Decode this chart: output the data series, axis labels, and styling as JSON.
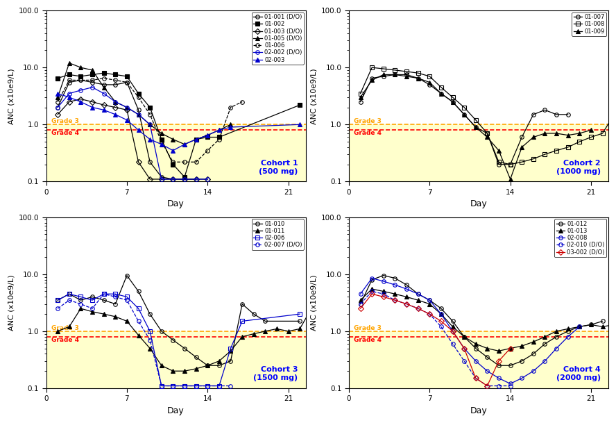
{
  "cohorts": [
    {
      "title": "Cohort 1\n(500 mg)",
      "legend_loc": "upper right",
      "series": [
        {
          "label": "01-001 (D/O)",
          "color": "black",
          "marker": "o",
          "fillstyle": "none",
          "linestyle": "-",
          "days": [
            1,
            2,
            3,
            4,
            5,
            6,
            7,
            8,
            9,
            10,
            11,
            12,
            13
          ],
          "values": [
            2.0,
            5.5,
            6.0,
            5.5,
            5.0,
            5.0,
            5.5,
            1.8,
            0.22,
            0.12,
            0.11,
            0.11,
            0.11
          ]
        },
        {
          "label": "01-002",
          "color": "black",
          "marker": "s",
          "fillstyle": "full",
          "linestyle": "-",
          "days": [
            1,
            2,
            3,
            4,
            5,
            6,
            7,
            8,
            9,
            10,
            11,
            12,
            13,
            14,
            15,
            22
          ],
          "values": [
            6.5,
            7.5,
            7.0,
            7.5,
            8.0,
            7.5,
            7.0,
            3.5,
            2.0,
            0.55,
            0.2,
            0.12,
            0.55,
            0.6,
            0.6,
            2.2
          ]
        },
        {
          "label": "01-003 (D/O)",
          "color": "black",
          "marker": "D",
          "fillstyle": "none",
          "linestyle": "-",
          "days": [
            1,
            2,
            3,
            4,
            5,
            6,
            7,
            8,
            9,
            10,
            11,
            12,
            13,
            14
          ],
          "values": [
            1.5,
            2.5,
            2.8,
            2.5,
            2.2,
            2.0,
            1.8,
            0.22,
            0.11,
            0.11,
            0.11,
            0.11,
            0.11,
            0.11
          ]
        },
        {
          "label": "01-005 (D/O)",
          "color": "black",
          "marker": "^",
          "fillstyle": "full",
          "linestyle": "-",
          "days": [
            1,
            2,
            3,
            4,
            5,
            6,
            7,
            8,
            9,
            10,
            11,
            12,
            13,
            14,
            15,
            16
          ],
          "values": [
            3.0,
            12.0,
            10.0,
            9.0,
            4.5,
            2.5,
            2.0,
            1.5,
            1.0,
            0.7,
            0.55,
            0.45,
            0.55,
            0.65,
            0.8,
            1.0
          ]
        },
        {
          "label": "01-006",
          "color": "black",
          "marker": "o",
          "fillstyle": "none",
          "linestyle": "--",
          "days": [
            1,
            2,
            3,
            4,
            5,
            6,
            7,
            8,
            9,
            10,
            11,
            12,
            13,
            14,
            15,
            16,
            17
          ],
          "values": [
            2.5,
            6.0,
            6.0,
            6.0,
            6.5,
            6.0,
            5.5,
            3.0,
            1.5,
            0.5,
            0.22,
            0.22,
            0.22,
            0.35,
            0.55,
            2.0,
            2.5
          ]
        },
        {
          "label": "02-002 (D/O)",
          "color": "#0000CC",
          "marker": "o",
          "fillstyle": "none",
          "linestyle": "-",
          "days": [
            1,
            2,
            3,
            4,
            5,
            6,
            7,
            8,
            9,
            10,
            11,
            12,
            13,
            14
          ],
          "values": [
            2.0,
            3.5,
            4.0,
            4.5,
            3.5,
            2.5,
            2.0,
            1.5,
            1.0,
            0.11,
            0.11,
            0.11,
            0.11,
            0.11
          ]
        },
        {
          "label": "02-003",
          "color": "#0000CC",
          "marker": "^",
          "fillstyle": "full",
          "linestyle": "-",
          "days": [
            1,
            2,
            3,
            4,
            5,
            6,
            7,
            8,
            9,
            10,
            11,
            12,
            13,
            14,
            15,
            16,
            22
          ],
          "values": [
            3.5,
            3.0,
            2.5,
            2.0,
            1.8,
            1.5,
            1.2,
            0.8,
            0.55,
            0.45,
            0.35,
            0.45,
            0.55,
            0.65,
            0.8,
            0.9,
            1.0
          ]
        }
      ]
    },
    {
      "title": "Cohort 2\n(1000 mg)",
      "legend_loc": "upper right",
      "series": [
        {
          "label": "01-007",
          "color": "black",
          "marker": "o",
          "fillstyle": "none",
          "linestyle": "-",
          "days": [
            1,
            2,
            3,
            4,
            5,
            6,
            7,
            8,
            9,
            10,
            11,
            12,
            13,
            14,
            15,
            16,
            17,
            18,
            19
          ],
          "values": [
            2.5,
            6.5,
            7.0,
            7.5,
            7.5,
            6.5,
            5.0,
            3.5,
            2.5,
            1.5,
            0.9,
            0.7,
            0.2,
            0.2,
            0.6,
            1.5,
            1.8,
            1.5,
            1.5
          ]
        },
        {
          "label": "01-008",
          "color": "black",
          "marker": "s",
          "fillstyle": "none",
          "linestyle": "-",
          "days": [
            1,
            2,
            3,
            4,
            5,
            6,
            7,
            8,
            9,
            10,
            11,
            12,
            13,
            14,
            15,
            16,
            17,
            18,
            19,
            20,
            21,
            22,
            23
          ],
          "values": [
            3.5,
            10.0,
            9.5,
            9.0,
            8.5,
            8.0,
            7.0,
            4.5,
            3.0,
            2.0,
            1.2,
            0.7,
            0.22,
            0.2,
            0.22,
            0.25,
            0.3,
            0.35,
            0.4,
            0.5,
            0.6,
            0.7,
            1.5
          ]
        },
        {
          "label": "01-009",
          "color": "black",
          "marker": "^",
          "fillstyle": "full",
          "linestyle": "-",
          "days": [
            1,
            2,
            3,
            4,
            5,
            6,
            7,
            8,
            9,
            10,
            11,
            12,
            13,
            14,
            15,
            16,
            17,
            18,
            19,
            20,
            21
          ],
          "values": [
            3.0,
            6.0,
            7.5,
            7.5,
            7.0,
            6.5,
            5.5,
            3.5,
            2.5,
            1.5,
            0.9,
            0.6,
            0.35,
            0.11,
            0.4,
            0.6,
            0.7,
            0.7,
            0.65,
            0.7,
            0.8
          ]
        }
      ]
    },
    {
      "title": "Cohort 3\n(1500 mg)",
      "legend_loc": "upper right",
      "series": [
        {
          "label": "01-010",
          "color": "black",
          "marker": "o",
          "fillstyle": "none",
          "linestyle": "-",
          "days": [
            1,
            2,
            3,
            4,
            5,
            6,
            7,
            8,
            9,
            10,
            11,
            12,
            13,
            14,
            15,
            16,
            17,
            18,
            19,
            22
          ],
          "values": [
            3.5,
            4.5,
            3.5,
            4.0,
            3.5,
            3.0,
            9.5,
            5.0,
            2.0,
            1.0,
            0.7,
            0.5,
            0.35,
            0.25,
            0.25,
            0.3,
            3.0,
            2.0,
            1.5,
            1.5
          ]
        },
        {
          "label": "01-011",
          "color": "black",
          "marker": "^",
          "fillstyle": "full",
          "linestyle": "-",
          "days": [
            1,
            2,
            3,
            4,
            5,
            6,
            7,
            8,
            9,
            10,
            11,
            12,
            13,
            14,
            15,
            16,
            17,
            18,
            19,
            20,
            21,
            22,
            23
          ],
          "values": [
            1.0,
            1.2,
            2.5,
            2.2,
            2.0,
            1.8,
            1.5,
            0.85,
            0.5,
            0.25,
            0.2,
            0.2,
            0.22,
            0.25,
            0.3,
            0.45,
            0.8,
            0.9,
            1.0,
            1.1,
            1.0,
            1.1,
            2.5
          ]
        },
        {
          "label": "02-006",
          "color": "#0000CC",
          "marker": "s",
          "fillstyle": "none",
          "linestyle": "-",
          "days": [
            1,
            2,
            3,
            4,
            5,
            6,
            7,
            8,
            9,
            10,
            11,
            12,
            13,
            14,
            15,
            16,
            17,
            22
          ],
          "values": [
            3.5,
            4.5,
            4.0,
            3.5,
            4.5,
            4.5,
            4.0,
            2.5,
            1.0,
            0.11,
            0.11,
            0.11,
            0.11,
            0.11,
            0.11,
            0.5,
            1.5,
            2.0
          ]
        },
        {
          "label": "02-007 (D/O)",
          "color": "#0000CC",
          "marker": "o",
          "fillstyle": "none",
          "linestyle": "--",
          "days": [
            1,
            2,
            3,
            4,
            5,
            6,
            7,
            8,
            9,
            10,
            11,
            12,
            13,
            14,
            15,
            16
          ],
          "values": [
            2.5,
            3.5,
            3.0,
            2.5,
            4.5,
            4.0,
            3.5,
            1.5,
            0.7,
            0.11,
            0.11,
            0.11,
            0.11,
            0.11,
            0.11,
            0.11
          ]
        }
      ]
    },
    {
      "title": "Cohort 4\n(2000 mg)",
      "legend_loc": "upper right",
      "series": [
        {
          "label": "01-012",
          "color": "black",
          "marker": "o",
          "fillstyle": "none",
          "linestyle": "-",
          "days": [
            1,
            2,
            3,
            4,
            5,
            6,
            7,
            8,
            9,
            10,
            11,
            12,
            13,
            14,
            15,
            16,
            17,
            18,
            19,
            20,
            21,
            22
          ],
          "values": [
            3.0,
            8.0,
            9.5,
            8.5,
            6.5,
            4.5,
            3.5,
            2.5,
            1.5,
            0.8,
            0.5,
            0.35,
            0.25,
            0.25,
            0.3,
            0.4,
            0.6,
            0.8,
            1.0,
            1.2,
            1.3,
            1.5
          ]
        },
        {
          "label": "01-013",
          "color": "black",
          "marker": "^",
          "fillstyle": "full",
          "linestyle": "-",
          "days": [
            1,
            2,
            3,
            4,
            5,
            6,
            7,
            8,
            9,
            10,
            11,
            12,
            13,
            14,
            15,
            16,
            17,
            18,
            19,
            20,
            21,
            22,
            23
          ],
          "values": [
            3.5,
            5.5,
            5.0,
            4.5,
            4.0,
            3.5,
            3.0,
            2.0,
            1.2,
            0.8,
            0.6,
            0.5,
            0.45,
            0.5,
            0.55,
            0.65,
            0.8,
            1.0,
            1.1,
            1.2,
            1.3,
            1.2,
            1.3
          ]
        },
        {
          "label": "02-008",
          "color": "#0000CC",
          "marker": "o",
          "fillstyle": "none",
          "linestyle": "-",
          "days": [
            1,
            2,
            3,
            4,
            5,
            6,
            7,
            8,
            9,
            10,
            11,
            12,
            13,
            14,
            15,
            16,
            17,
            18,
            19,
            20
          ],
          "values": [
            4.5,
            8.5,
            7.5,
            6.5,
            5.5,
            4.5,
            3.5,
            2.0,
            1.0,
            0.5,
            0.3,
            0.2,
            0.15,
            0.12,
            0.15,
            0.2,
            0.3,
            0.5,
            0.8,
            1.2
          ]
        },
        {
          "label": "02-010 (D/O)",
          "color": "#0000CC",
          "marker": "o",
          "fillstyle": "none",
          "linestyle": "--",
          "days": [
            1,
            2,
            3,
            4,
            5,
            6,
            7,
            8,
            9,
            10,
            11,
            12,
            13,
            14
          ],
          "values": [
            3.0,
            5.0,
            4.5,
            3.5,
            3.0,
            2.5,
            2.0,
            1.2,
            0.6,
            0.3,
            0.15,
            0.11,
            0.11,
            0.11
          ]
        },
        {
          "label": "03-002 (D/O)",
          "color": "#CC0000",
          "marker": "D",
          "fillstyle": "none",
          "linestyle": "-",
          "days": [
            1,
            2,
            3,
            4,
            5,
            6,
            7,
            8,
            9,
            10,
            11,
            12,
            13,
            14
          ],
          "values": [
            2.5,
            4.5,
            4.0,
            3.5,
            3.0,
            2.5,
            2.0,
            1.5,
            1.0,
            0.5,
            0.15,
            0.11,
            0.3,
            0.5
          ]
        }
      ]
    }
  ],
  "grade3_line": 1.0,
  "grade4_line": 0.8,
  "grade3_color": "#FFA500",
  "grade4_color": "#FF0000",
  "ylim": [
    0.1,
    100.0
  ],
  "xlim": [
    0,
    22.5
  ],
  "xticks": [
    0,
    7,
    14,
    21
  ],
  "ylabel": "ANC (x10e9/L)",
  "xlabel": "Day",
  "background_color": "#ffffcc"
}
